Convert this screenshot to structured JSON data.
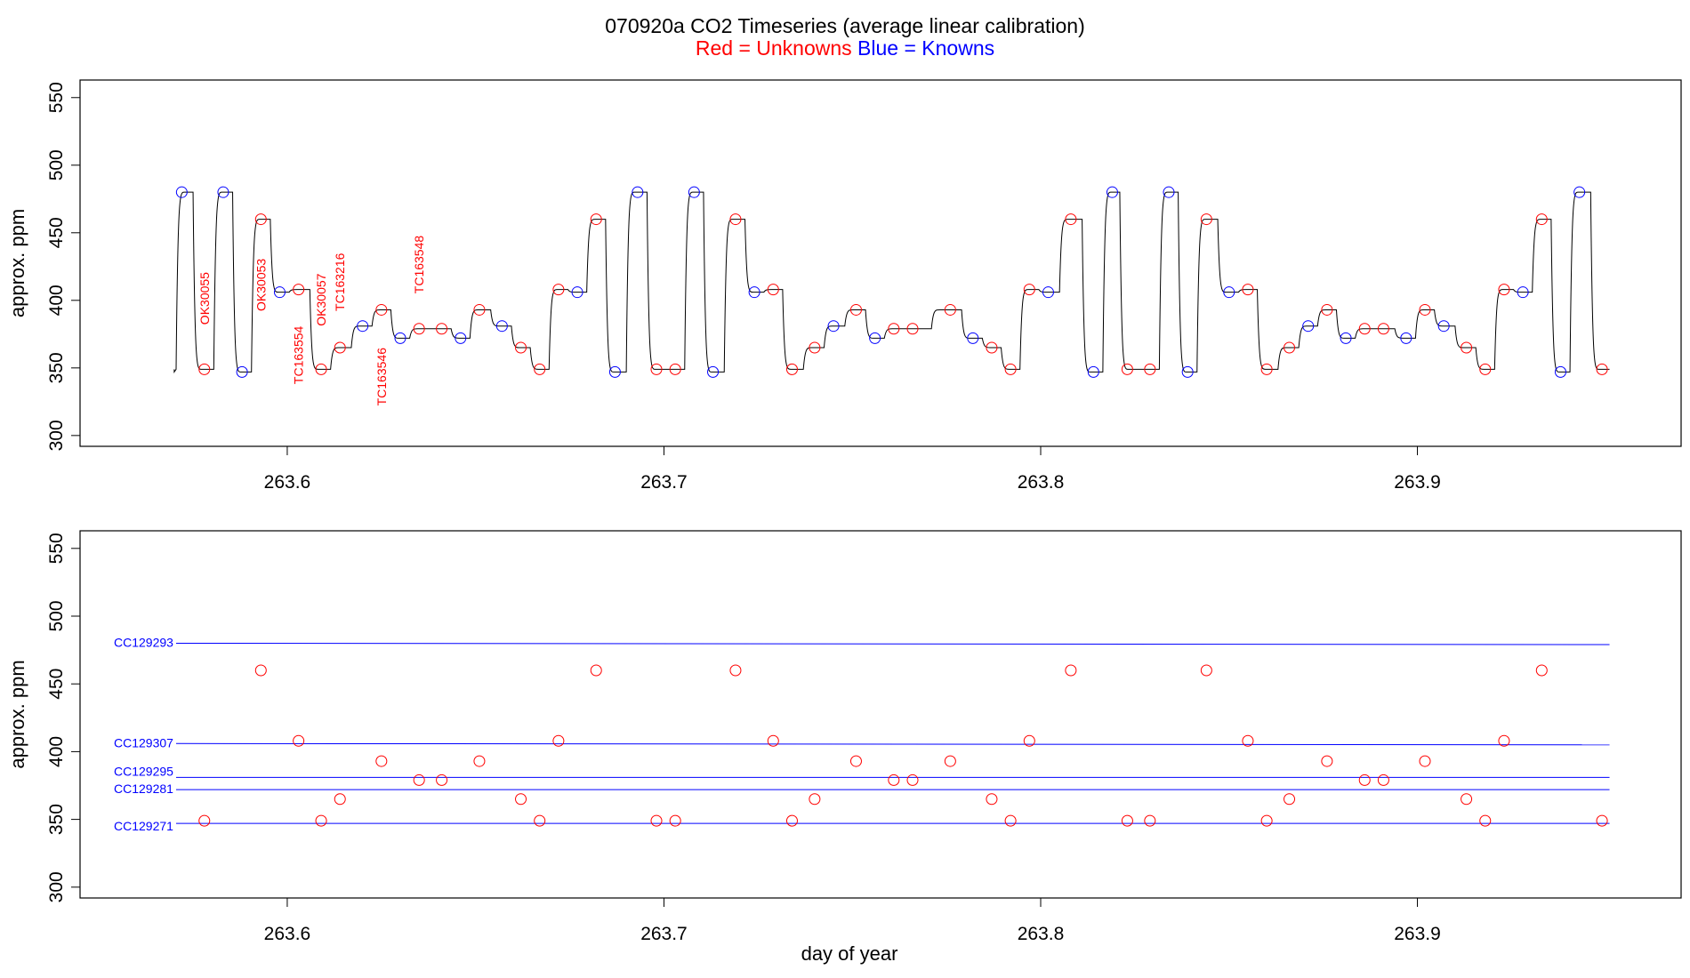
{
  "title": "070920a   CO2 Timeseries (average linear calibration)",
  "subtitle": {
    "red_text": "Red = Unknowns",
    "blue_text": "Blue = Knowns"
  },
  "colors": {
    "unknown": "#ff0000",
    "known": "#0000ff",
    "trace": "#000000",
    "frame": "#000000"
  },
  "chart_data": [
    {
      "type": "line",
      "panel": "top",
      "title": "",
      "xlabel": "",
      "ylabel": "approx. ppm",
      "xlim": [
        263.545,
        263.97
      ],
      "ylim": [
        292,
        563
      ],
      "x_ticks": [
        263.6,
        263.7,
        263.8,
        263.9
      ],
      "x_tick_labels": [
        "263.6",
        "263.7",
        "263.8",
        "263.9"
      ],
      "y_ticks": [
        300,
        350,
        400,
        450,
        500,
        550
      ],
      "y_tick_labels": [
        "300",
        "350",
        "400",
        "450",
        "500",
        "550"
      ],
      "series": [
        {
          "kind": "known",
          "x": [
            263.572,
            263.583,
            263.588,
            263.598,
            263.62,
            263.63,
            263.646,
            263.657,
            263.677,
            263.687,
            263.693,
            263.708,
            263.713,
            263.724,
            263.745,
            263.756,
            263.782,
            263.802,
            263.814,
            263.819,
            263.834,
            263.839,
            263.85,
            263.871,
            263.881,
            263.897,
            263.907,
            263.928,
            263.938,
            263.943
          ],
          "y": [
            480,
            480,
            347,
            406,
            381,
            372,
            372,
            381,
            406,
            347,
            480,
            480,
            347,
            406,
            381,
            372,
            372,
            406,
            347,
            480,
            480,
            347,
            406,
            381,
            372,
            372,
            381,
            406,
            347,
            480
          ]
        },
        {
          "kind": "unknown",
          "x": [
            263.578,
            263.593,
            263.603,
            263.609,
            263.614,
            263.625,
            263.635,
            263.641,
            263.651,
            263.662,
            263.667,
            263.672,
            263.682,
            263.698,
            263.703,
            263.719,
            263.729,
            263.734,
            263.74,
            263.751,
            263.761,
            263.766,
            263.776,
            263.787,
            263.792,
            263.797,
            263.808,
            263.823,
            263.829,
            263.844,
            263.855,
            263.86,
            263.866,
            263.876,
            263.886,
            263.891,
            263.902,
            263.913,
            263.918,
            263.923,
            263.933,
            263.949
          ],
          "y": [
            349,
            460,
            408,
            349,
            365,
            393,
            379,
            379,
            393,
            365,
            349,
            408,
            460,
            349,
            349,
            460,
            408,
            349,
            365,
            393,
            379,
            379,
            393,
            365,
            349,
            408,
            460,
            349,
            349,
            460,
            408,
            349,
            365,
            393,
            379,
            379,
            393,
            365,
            349,
            408,
            460,
            349
          ]
        }
      ],
      "annotations": [
        {
          "text": "OK30055",
          "x": 263.578,
          "y": 382
        },
        {
          "text": "OK30053",
          "x": 263.593,
          "y": 392
        },
        {
          "text": "TC163554",
          "x": 263.603,
          "y": 338
        },
        {
          "text": "OK30057",
          "x": 263.609,
          "y": 381
        },
        {
          "text": "TC163216",
          "x": 263.614,
          "y": 392
        },
        {
          "text": "TC163546",
          "x": 263.625,
          "y": 322
        },
        {
          "text": "TC163548",
          "x": 263.635,
          "y": 405
        }
      ]
    },
    {
      "type": "scatter",
      "panel": "bottom",
      "title": "",
      "xlabel": "day of year",
      "ylabel": "approx. ppm",
      "xlim": [
        263.545,
        263.97
      ],
      "ylim": [
        292,
        563
      ],
      "x_ticks": [
        263.6,
        263.7,
        263.8,
        263.9
      ],
      "x_tick_labels": [
        "263.6",
        "263.7",
        "263.8",
        "263.9"
      ],
      "y_ticks": [
        300,
        350,
        400,
        450,
        500,
        550
      ],
      "y_tick_labels": [
        "300",
        "350",
        "400",
        "450",
        "500",
        "550"
      ],
      "standards": [
        {
          "name": "CC129293",
          "y_start": 480,
          "y_end": 479
        },
        {
          "name": "CC129307",
          "y_start": 406,
          "y_end": 405
        },
        {
          "name": "CC129295",
          "y_start": 381,
          "y_end": 381
        },
        {
          "name": "CC129281",
          "y_start": 372,
          "y_end": 372
        },
        {
          "name": "CC129271",
          "y_start": 347,
          "y_end": 347
        }
      ],
      "series": [
        {
          "kind": "unknown",
          "x": [
            263.578,
            263.593,
            263.603,
            263.609,
            263.614,
            263.625,
            263.635,
            263.641,
            263.651,
            263.662,
            263.667,
            263.672,
            263.682,
            263.698,
            263.703,
            263.719,
            263.729,
            263.734,
            263.74,
            263.751,
            263.761,
            263.766,
            263.776,
            263.787,
            263.792,
            263.797,
            263.808,
            263.823,
            263.829,
            263.844,
            263.855,
            263.86,
            263.866,
            263.876,
            263.886,
            263.891,
            263.902,
            263.913,
            263.918,
            263.923,
            263.933,
            263.949
          ],
          "y": [
            349,
            460,
            408,
            349,
            365,
            393,
            379,
            379,
            393,
            365,
            349,
            408,
            460,
            349,
            349,
            460,
            408,
            349,
            365,
            393,
            379,
            379,
            393,
            365,
            349,
            408,
            460,
            349,
            349,
            460,
            408,
            349,
            365,
            393,
            379,
            379,
            393,
            365,
            349,
            408,
            460,
            349
          ]
        }
      ]
    }
  ]
}
